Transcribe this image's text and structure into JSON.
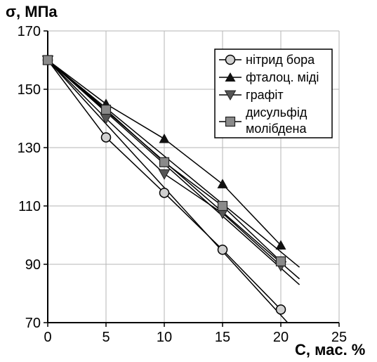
{
  "chart_data": {
    "type": "line",
    "ylabel": "σ, МПа",
    "xlabel": "С, мас. %",
    "xlim": [
      0,
      25
    ],
    "ylim": [
      70,
      170
    ],
    "xticks": [
      0,
      5,
      10,
      15,
      20,
      25
    ],
    "yticks": [
      70,
      90,
      110,
      130,
      150,
      170
    ],
    "grid": true,
    "legend_position": "top-right",
    "series": [
      {
        "name": "нітрид бора",
        "marker": "circle",
        "x": [
          0,
          5,
          10,
          15,
          20
        ],
        "values": [
          160,
          133.5,
          114.5,
          95,
          74.5
        ]
      },
      {
        "name": "фталоц. міді",
        "marker": "triangle-up",
        "x": [
          0,
          5,
          10,
          15,
          20
        ],
        "values": [
          160,
          145,
          133,
          117.5,
          96.5
        ]
      },
      {
        "name": "графіт",
        "marker": "triangle-down",
        "x": [
          0,
          5,
          10,
          15,
          20
        ],
        "values": [
          160,
          140,
          121,
          107.5,
          89.5
        ]
      },
      {
        "name": "дисульфід молібдена",
        "name_lines": [
          "дисульфід",
          "молібдена"
        ],
        "marker": "square",
        "x": [
          0,
          5,
          10,
          15,
          20
        ],
        "values": [
          160,
          143,
          125,
          110,
          91
        ]
      }
    ],
    "trend_lines": [
      {
        "series": "нітрид бора",
        "x": [
          0,
          21.5
        ],
        "values": [
          160,
          66
        ]
      },
      {
        "series": "фталоц. міді",
        "x": [
          0,
          21.6
        ],
        "values": [
          160,
          89
        ]
      },
      {
        "series": "графіт",
        "x": [
          0,
          21.6
        ],
        "values": [
          160,
          83
        ]
      },
      {
        "series": "дисульфід молібдена",
        "x": [
          0,
          21.6
        ],
        "values": [
          160,
          85
        ]
      }
    ]
  }
}
